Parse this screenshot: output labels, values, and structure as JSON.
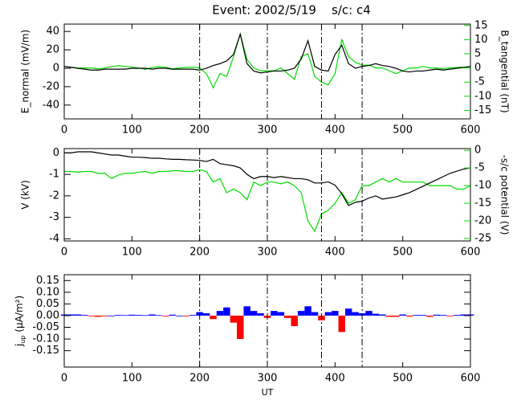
{
  "title": "Event: 2002/5/19    s/c: c4",
  "xlabel": "UT",
  "chart_data": [
    {
      "type": "line",
      "ylabel": "E_normal (mV/m)",
      "y2label": "B_tangential (nT)",
      "x": [
        0,
        10,
        20,
        30,
        40,
        50,
        60,
        70,
        80,
        90,
        100,
        110,
        120,
        130,
        140,
        150,
        160,
        170,
        180,
        190,
        200,
        210,
        220,
        230,
        240,
        250,
        260,
        270,
        280,
        290,
        300,
        310,
        320,
        330,
        340,
        350,
        360,
        370,
        380,
        390,
        400,
        410,
        420,
        430,
        440,
        450,
        460,
        470,
        480,
        490,
        500,
        510,
        520,
        530,
        540,
        550,
        560,
        570,
        580,
        590,
        600
      ],
      "xlim": [
        0,
        600
      ],
      "xticks": [
        0,
        100,
        200,
        300,
        400,
        500,
        600
      ],
      "ylim": [
        -55,
        48
      ],
      "yticks": [
        -40,
        -20,
        0,
        20,
        40
      ],
      "y2lim": [
        -18,
        15.5
      ],
      "y2ticks": [
        -15,
        -10,
        -5,
        0,
        5,
        10,
        15
      ],
      "y2color": "#00dd00",
      "event_lines": [
        200,
        300,
        380,
        440
      ],
      "series": [
        {
          "color": "#00dd00",
          "axis": "y2",
          "values": [
            0.5,
            0.3,
            0,
            0,
            0,
            -0.3,
            0,
            0.5,
            0.8,
            0.5,
            0.3,
            0,
            -0.5,
            0.2,
            0.4,
            0.3,
            -0.3,
            0,
            0.2,
            0.3,
            0,
            -2,
            -7,
            -2,
            -3,
            4,
            12,
            3,
            0,
            -1,
            -1,
            -1,
            0,
            -2,
            -4,
            4,
            5,
            -3,
            -5,
            -6,
            -2,
            10,
            4,
            2,
            1,
            1,
            0,
            0,
            -1,
            -2,
            -1,
            0,
            0,
            0.5,
            0,
            0,
            -0.3,
            0,
            0.2,
            0.3,
            0
          ]
        },
        {
          "color": "#000000",
          "values": [
            2,
            1,
            0,
            -1,
            -2,
            -2,
            -1,
            -1,
            -1,
            -1,
            0,
            0,
            0,
            -1,
            0,
            0,
            -1,
            -1,
            -1,
            -1,
            -2,
            0,
            3,
            5,
            8,
            15,
            37,
            5,
            -3,
            -5,
            -4,
            -3,
            -3,
            -2,
            0,
            10,
            30,
            2,
            -2,
            -3,
            15,
            25,
            5,
            0,
            2,
            3,
            5,
            3,
            2,
            0,
            -3,
            -4,
            -3,
            -3,
            -2,
            -1,
            -2,
            -1,
            0,
            1,
            2
          ]
        }
      ]
    },
    {
      "type": "line",
      "ylabel": "V (kV)",
      "y2label": "-s/c potential (V)",
      "x": [
        0,
        10,
        20,
        30,
        40,
        50,
        60,
        70,
        80,
        90,
        100,
        110,
        120,
        130,
        140,
        150,
        160,
        170,
        180,
        190,
        200,
        210,
        220,
        230,
        240,
        250,
        260,
        270,
        280,
        290,
        300,
        310,
        320,
        330,
        340,
        350,
        360,
        370,
        380,
        390,
        400,
        410,
        420,
        430,
        440,
        450,
        460,
        470,
        480,
        490,
        500,
        510,
        520,
        530,
        540,
        550,
        560,
        570,
        580,
        590,
        600
      ],
      "xlim": [
        0,
        600
      ],
      "xticks": [
        0,
        100,
        200,
        300,
        400,
        500,
        600
      ],
      "ylim": [
        -4.1,
        0.2
      ],
      "yticks": [
        -4,
        -3,
        -2,
        -1,
        0
      ],
      "y2lim": [
        -25.7,
        0.5
      ],
      "y2ticks": [
        -25,
        -20,
        -15,
        -10,
        -5,
        0
      ],
      "y2color": "#00dd00",
      "event_lines": [
        200,
        300,
        380,
        440
      ],
      "series": [
        {
          "color": "#00dd00",
          "axis": "y2",
          "values": [
            -6,
            -6,
            -6.2,
            -6,
            -6,
            -6.5,
            -6.5,
            -8,
            -7,
            -6.5,
            -6.5,
            -6.2,
            -6,
            -6.5,
            -6,
            -6,
            -5.8,
            -5.8,
            -6,
            -6,
            -5.5,
            -6,
            -9,
            -8,
            -12,
            -11,
            -12,
            -14,
            -9,
            -10,
            -9,
            -9,
            -9.5,
            -9,
            -10,
            -12,
            -20,
            -23,
            -18,
            -17,
            -15,
            -12,
            -15,
            -14,
            -10,
            -10,
            -9,
            -8,
            -9,
            -8,
            -9,
            -9,
            -9,
            -9,
            -10,
            -10,
            -10,
            -10,
            -11,
            -11,
            -10
          ]
        },
        {
          "color": "#000000",
          "values": [
            0,
            0,
            0.05,
            0.05,
            0.05,
            0,
            -0.05,
            -0.1,
            -0.1,
            -0.15,
            -0.2,
            -0.2,
            -0.22,
            -0.25,
            -0.25,
            -0.28,
            -0.3,
            -0.3,
            -0.32,
            -0.33,
            -0.35,
            -0.4,
            -0.3,
            -0.5,
            -0.55,
            -0.6,
            -0.7,
            -1.0,
            -1.2,
            -1.1,
            -1.1,
            -1.15,
            -1.1,
            -1.15,
            -1.2,
            -1.2,
            -1.25,
            -1.4,
            -1.4,
            -1.35,
            -1.5,
            -1.9,
            -2.45,
            -2.3,
            -2.25,
            -2.1,
            -2.0,
            -2.15,
            -2.1,
            -2.05,
            -1.95,
            -1.85,
            -1.7,
            -1.55,
            -1.4,
            -1.25,
            -1.1,
            -0.95,
            -0.85,
            -0.75,
            -0.7
          ]
        }
      ]
    },
    {
      "type": "area",
      "ylabel": "j",
      "ylabel_sub": "up",
      "ylabel_unit": "(μA/m²)",
      "x": [
        0,
        10,
        20,
        30,
        40,
        50,
        60,
        70,
        80,
        90,
        100,
        110,
        120,
        130,
        140,
        150,
        160,
        170,
        180,
        190,
        200,
        210,
        220,
        230,
        240,
        250,
        260,
        270,
        280,
        290,
        300,
        310,
        320,
        330,
        340,
        350,
        360,
        370,
        380,
        390,
        400,
        410,
        420,
        430,
        440,
        450,
        460,
        470,
        480,
        490,
        500,
        510,
        520,
        530,
        540,
        550,
        560,
        570,
        580,
        590,
        600
      ],
      "xlim": [
        0,
        600
      ],
      "xticks": [
        0,
        100,
        200,
        300,
        400,
        500,
        600
      ],
      "ylim": [
        -0.22,
        0.175
      ],
      "yticks": [
        {
          "value": -0.15,
          "label": "-0.15"
        },
        {
          "value": -0.1,
          "label": "-0.10"
        },
        {
          "value": -0.05,
          "label": "-0.05"
        },
        {
          "value": 0,
          "label": "0.00"
        },
        {
          "value": 0.05,
          "label": "0.05"
        },
        {
          "value": 0.1,
          "label": "0.10"
        },
        {
          "value": 0.15,
          "label": "0.15"
        }
      ],
      "event_lines": [
        200,
        300,
        380,
        440
      ],
      "positive_color": "#0000ff",
      "negative_color": "#ff0000",
      "values": [
        0.005,
        0.005,
        0.005,
        0.003,
        -0.003,
        -0.005,
        -0.003,
        0,
        0.003,
        0.002,
        0.004,
        0.003,
        0.002,
        0.005,
        0.002,
        -0.003,
        0.004,
        0,
        -0.003,
        0.003,
        0.015,
        0.01,
        -0.015,
        0.02,
        0.035,
        -0.03,
        -0.1,
        0.04,
        0.02,
        0.01,
        -0.01,
        0.02,
        0.015,
        -0.01,
        -0.045,
        0.02,
        0.04,
        0.015,
        -0.02,
        0.015,
        0.02,
        -0.07,
        0.03,
        0.015,
        0.01,
        0.02,
        0.008,
        0.005,
        -0.005,
        -0.005,
        0.005,
        -0.004,
        0.003,
        0.003,
        -0.005,
        0.004,
        0.003,
        -0.003,
        0.003,
        0.005,
        0.005
      ]
    }
  ]
}
